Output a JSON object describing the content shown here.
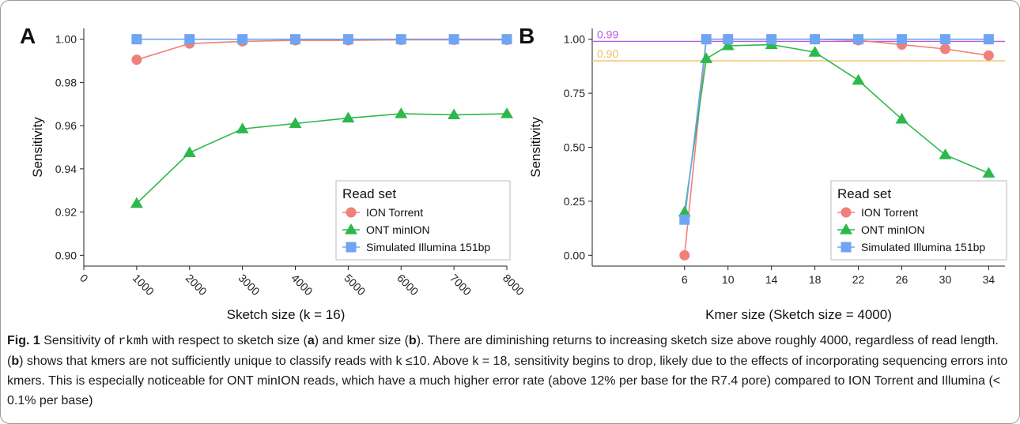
{
  "colors": {
    "ion_torrent": "#F08079",
    "ont_minion": "#2DB84C",
    "simulated_illumina": "#6FA5F2",
    "line_099": "#B55BE0",
    "line_090": "#F0C060"
  },
  "chart_data": [
    {
      "type": "line",
      "panel_label": "A",
      "xlabel": "Sketch size (k = 16)",
      "ylabel": "Sensitivity",
      "x_ticks": [
        0,
        1000,
        2000,
        3000,
        4000,
        5000,
        6000,
        7000,
        8000
      ],
      "x_tick_labels": [
        "0",
        "1000",
        "2000",
        "3000",
        "4000",
        "5000",
        "6000",
        "7000",
        "8000"
      ],
      "xlim": [
        0,
        8000
      ],
      "y_ticks": [
        0.9,
        0.92,
        0.94,
        0.96,
        0.98,
        1.0
      ],
      "y_tick_labels": [
        "0.90",
        "0.92",
        "0.94",
        "0.96",
        "0.98",
        "1.00"
      ],
      "ylim": [
        0.895,
        1.005
      ],
      "grid": false,
      "legend": {
        "title": "Read set",
        "placement": "bottom-right",
        "items": [
          "ION Torrent",
          "ONT minION",
          "Simulated Illumina 151bp"
        ]
      },
      "series": [
        {
          "name": "ION Torrent",
          "marker": "circle",
          "color_key": "ion_torrent",
          "x": [
            1000,
            2000,
            3000,
            4000,
            5000,
            6000,
            7000,
            8000
          ],
          "y": [
            0.9905,
            0.998,
            0.999,
            0.9995,
            0.9995,
            0.9997,
            0.9997,
            0.9997
          ]
        },
        {
          "name": "ONT minION",
          "marker": "triangle",
          "color_key": "ont_minion",
          "x": [
            1000,
            2000,
            3000,
            4000,
            5000,
            6000,
            7000,
            8000
          ],
          "y": [
            0.924,
            0.9475,
            0.9585,
            0.961,
            0.9635,
            0.9655,
            0.965,
            0.9655
          ]
        },
        {
          "name": "Simulated Illumina 151bp",
          "marker": "square",
          "color_key": "simulated_illumina",
          "x": [
            1000,
            2000,
            3000,
            4000,
            5000,
            6000,
            7000,
            8000
          ],
          "y": [
            1.0,
            1.0,
            1.0,
            1.0,
            1.0,
            1.0,
            1.0,
            1.0
          ]
        }
      ]
    },
    {
      "type": "line",
      "panel_label": "B",
      "xlabel": "Kmer size (Sketch size = 4000)",
      "ylabel": "Sensitivity",
      "x_ticks": [
        6,
        10,
        14,
        18,
        22,
        26,
        30,
        34
      ],
      "x_tick_labels": [
        "6",
        "10",
        "14",
        "18",
        "22",
        "26",
        "30",
        "34"
      ],
      "xlim": [
        -2.5,
        35.5
      ],
      "y_ticks": [
        0.0,
        0.25,
        0.5,
        0.75,
        1.0
      ],
      "y_tick_labels": [
        "0.00",
        "0.25",
        "0.50",
        "0.75",
        "1.00"
      ],
      "ylim": [
        -0.05,
        1.05
      ],
      "grid": false,
      "reference_lines": [
        {
          "y": 0.99,
          "label": "0.99",
          "color_key": "line_099"
        },
        {
          "y": 0.9,
          "label": "0.90",
          "color_key": "line_090"
        }
      ],
      "legend": {
        "title": "Read set",
        "placement": "bottom-right",
        "items": [
          "ION Torrent",
          "ONT minION",
          "Simulated Illumina 151bp"
        ]
      },
      "series": [
        {
          "name": "ION Torrent",
          "marker": "circle",
          "color_key": "ion_torrent",
          "x": [
            6,
            8,
            10,
            14,
            18,
            22,
            26,
            30,
            34
          ],
          "y": [
            0.0,
            1.0,
            1.0,
            1.0,
            1.0,
            0.995,
            0.975,
            0.955,
            0.925
          ]
        },
        {
          "name": "ONT minION",
          "marker": "triangle",
          "color_key": "ont_minion",
          "x": [
            6,
            8,
            10,
            14,
            18,
            22,
            26,
            30,
            34
          ],
          "y": [
            0.2,
            0.91,
            0.97,
            0.975,
            0.94,
            0.81,
            0.63,
            0.465,
            0.38
          ]
        },
        {
          "name": "Simulated Illumina 151bp",
          "marker": "square",
          "color_key": "simulated_illumina",
          "x": [
            6,
            8,
            10,
            14,
            18,
            22,
            26,
            30,
            34
          ],
          "y": [
            0.165,
            1.0,
            1.0,
            1.0,
            1.0,
            1.0,
            1.0,
            1.0,
            1.0
          ]
        }
      ]
    }
  ],
  "caption": {
    "fig_label": "Fig. 1",
    "t1": " Sensitivity of ",
    "code": "rkmh",
    "t2": " with respect to sketch size (",
    "a": "a",
    "t3": ") and kmer size (",
    "b": "b",
    "t4": "). There are diminishing returns to increasing sketch size above roughly 4000, regardless of read length. (",
    "b2": "b",
    "t5": ") shows that kmers are not sufficiently unique to classify reads with k ≤10. Above k = 18, sensitivity begins to drop, likely due to the effects of incorporating sequencing errors into kmers. This is especially noticeable for ONT minION reads, which have a much higher error rate (above 12% per base for the R7.4 pore) compared to ION Torrent and Illumina (< 0.1% per base)"
  }
}
